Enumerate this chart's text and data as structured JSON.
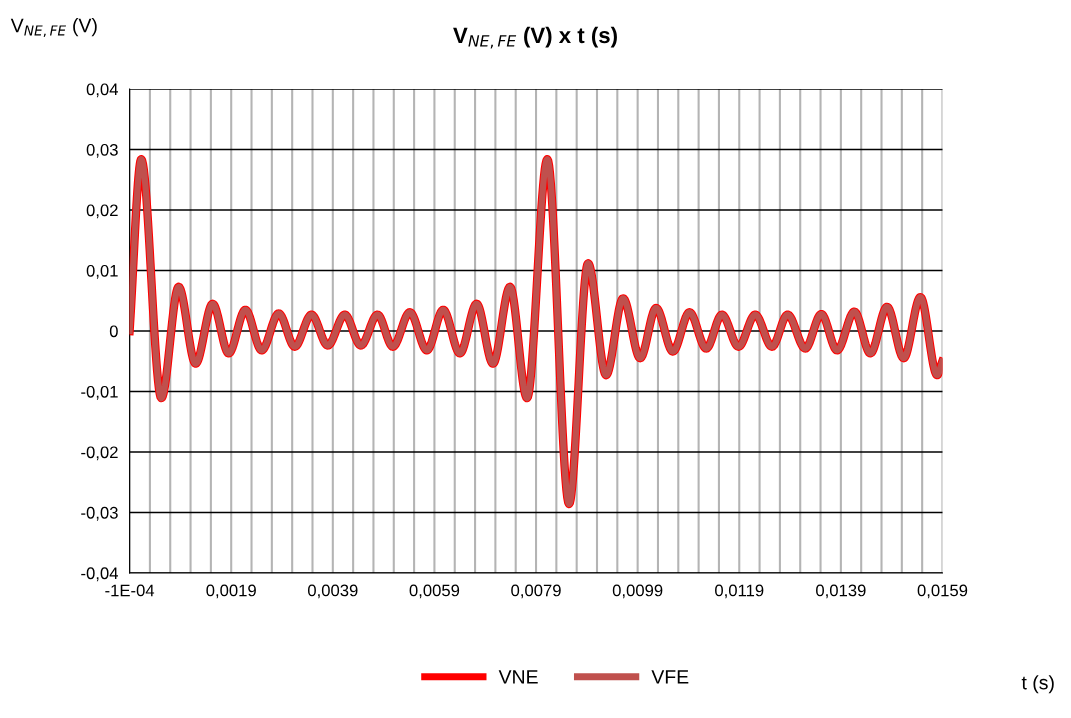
{
  "chart_data": {
    "type": "line",
    "title": "V$_{NE,FE}$ (V) x t (s)",
    "ylabel": "V$_{NE,FE}$ (V)",
    "xlabel": "t (s)",
    "x": [
      -0.0001,
      0.00013,
      0.000525,
      0.000866,
      0.0012,
      0.001535,
      0.00185,
      0.00218,
      0.0025,
      0.002836,
      0.003151,
      0.00348,
      0.003801,
      0.004136,
      0.004452,
      0.00478,
      0.005082,
      0.005417,
      0.005752,
      0.006073,
      0.006402,
      0.006731,
      0.007053,
      0.007388,
      0.007723,
      0.008122,
      0.00855,
      0.008924,
      0.009279,
      0.009614,
      0.00995,
      0.010264,
      0.010593,
      0.010921,
      0.01125,
      0.011559,
      0.011886,
      0.012215,
      0.012544,
      0.012852,
      0.0132,
      0.013515,
      0.013825,
      0.014166,
      0.014481,
      0.01481,
      0.015137,
      0.015466,
      0.015795,
      0.015894
    ],
    "series": [
      {
        "name": "VNE",
        "color": "#ff0000",
        "values": [
          0,
          0.0284,
          -0.0111,
          0.0073,
          -0.0054,
          0.0045,
          -0.0037,
          0.0035,
          -0.0032,
          0.0029,
          -0.0026,
          0.0027,
          -0.0024,
          0.0027,
          -0.0024,
          0.0027,
          -0.0026,
          0.0031,
          -0.0032,
          0.0035,
          -0.0037,
          0.0045,
          -0.0054,
          0.0073,
          -0.0111,
          0.0284,
          -0.0286,
          0.0112,
          -0.0073,
          0.0054,
          -0.0045,
          0.0038,
          -0.0034,
          0.0031,
          -0.0029,
          0.0027,
          -0.0026,
          0.0027,
          -0.0026,
          0.0027,
          -0.0029,
          0.0028,
          -0.0032,
          0.0032,
          -0.0037,
          0.004,
          -0.0045,
          0.0056,
          -0.0073,
          -0.0051
        ]
      },
      {
        "name": "VFE",
        "color": "#c0504d",
        "values": [
          0,
          0.0284,
          -0.0111,
          0.0073,
          -0.0054,
          0.0045,
          -0.0037,
          0.0035,
          -0.0032,
          0.0029,
          -0.0026,
          0.0027,
          -0.0024,
          0.0027,
          -0.0024,
          0.0027,
          -0.0026,
          0.0031,
          -0.0032,
          0.0035,
          -0.0037,
          0.0045,
          -0.0054,
          0.0073,
          -0.0111,
          0.0284,
          -0.0286,
          0.0112,
          -0.0073,
          0.0054,
          -0.0045,
          0.0038,
          -0.0034,
          0.0031,
          -0.0029,
          0.0027,
          -0.0026,
          0.0027,
          -0.0026,
          0.0027,
          -0.0029,
          0.0028,
          -0.0032,
          0.0032,
          -0.0037,
          0.004,
          -0.0045,
          0.0056,
          -0.0073,
          -0.0051
        ]
      }
    ],
    "xlim": [
      -0.0001,
      0.0159
    ],
    "xticks": [
      {
        "value": -0.0001,
        "label": "-1E-04"
      },
      {
        "value": 0.0003,
        "label": null
      },
      {
        "value": 0.0007,
        "label": null
      },
      {
        "value": 0.0011,
        "label": null
      },
      {
        "value": 0.0015,
        "label": null
      },
      {
        "value": 0.0019,
        "label": "0,0019"
      },
      {
        "value": 0.0023,
        "label": null
      },
      {
        "value": 0.0027,
        "label": null
      },
      {
        "value": 0.0031,
        "label": null
      },
      {
        "value": 0.0035,
        "label": null
      },
      {
        "value": 0.0039,
        "label": "0,0039"
      },
      {
        "value": 0.0043,
        "label": null
      },
      {
        "value": 0.0047,
        "label": null
      },
      {
        "value": 0.0051,
        "label": null
      },
      {
        "value": 0.0055,
        "label": null
      },
      {
        "value": 0.0059,
        "label": "0,0059"
      },
      {
        "value": 0.0063,
        "label": null
      },
      {
        "value": 0.0067,
        "label": null
      },
      {
        "value": 0.0071,
        "label": null
      },
      {
        "value": 0.0075,
        "label": null
      },
      {
        "value": 0.0079,
        "label": "0,0079"
      },
      {
        "value": 0.0083,
        "label": null
      },
      {
        "value": 0.0087,
        "label": null
      },
      {
        "value": 0.0091,
        "label": null
      },
      {
        "value": 0.0095,
        "label": null
      },
      {
        "value": 0.0099,
        "label": "0,0099"
      },
      {
        "value": 0.0103,
        "label": null
      },
      {
        "value": 0.0107,
        "label": null
      },
      {
        "value": 0.0111,
        "label": null
      },
      {
        "value": 0.0115,
        "label": null
      },
      {
        "value": 0.0119,
        "label": "0,0119"
      },
      {
        "value": 0.0123,
        "label": null
      },
      {
        "value": 0.0127,
        "label": null
      },
      {
        "value": 0.0131,
        "label": null
      },
      {
        "value": 0.0135,
        "label": null
      },
      {
        "value": 0.0139,
        "label": "0,0139"
      },
      {
        "value": 0.0143,
        "label": null
      },
      {
        "value": 0.0147,
        "label": null
      },
      {
        "value": 0.0151,
        "label": null
      },
      {
        "value": 0.0155,
        "label": null
      },
      {
        "value": 0.0159,
        "label": "0,0159"
      }
    ],
    "ylim": [
      -0.04,
      0.04
    ],
    "yticks": [
      {
        "value": -0.04,
        "label": "-0,04"
      },
      {
        "value": -0.03,
        "label": "-0,03"
      },
      {
        "value": -0.02,
        "label": "-0,02"
      },
      {
        "value": -0.01,
        "label": "-0,01"
      },
      0,
      {
        "value": 0.01,
        "label": "0,01"
      },
      {
        "value": 0.02,
        "label": "0,02"
      },
      {
        "value": 0.03,
        "label": "0,03"
      },
      {
        "value": 0.04,
        "label": "0,04"
      }
    ],
    "grid": true,
    "legend": "bottom",
    "marker": "none",
    "line_style": "solid"
  }
}
